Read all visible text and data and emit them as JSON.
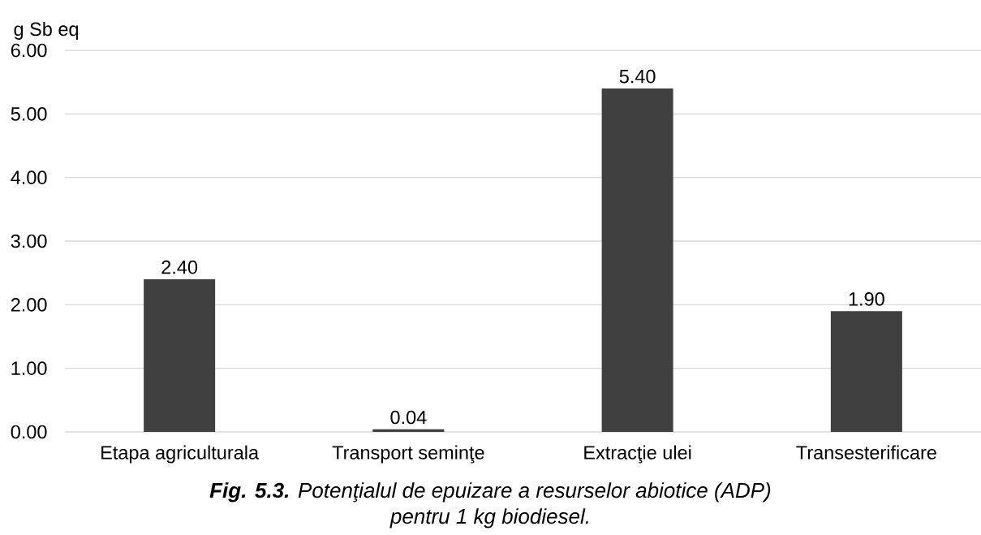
{
  "chart_data": {
    "type": "bar",
    "ylabel": "g Sb eq",
    "annotations": [
      "**Fig. 5.3.** Potenţialul de epuizare a resurselor abiotice (ADP) pentru 1 kg biodiesel."
    ],
    "categories": [
      "Etapa agriculturala",
      "Transport seminţe",
      "Extracţie ulei",
      "Transesterificare"
    ],
    "values": [
      2.4,
      0.04,
      5.4,
      1.9
    ],
    "value_labels": [
      "2.40",
      "0.04",
      "5.40",
      "1.90"
    ],
    "color": "#404040",
    "ylim": [
      0,
      6
    ],
    "yticks": [
      {
        "value": 0,
        "label": "0.00"
      },
      {
        "value": 1,
        "label": "1.00"
      },
      {
        "value": 2,
        "label": "2.00"
      },
      {
        "value": 3,
        "label": "3.00"
      },
      {
        "value": 4,
        "label": "4.00"
      },
      {
        "value": 5,
        "label": "5.00"
      },
      {
        "value": 6,
        "label": "6.00"
      }
    ],
    "grid": "y"
  }
}
